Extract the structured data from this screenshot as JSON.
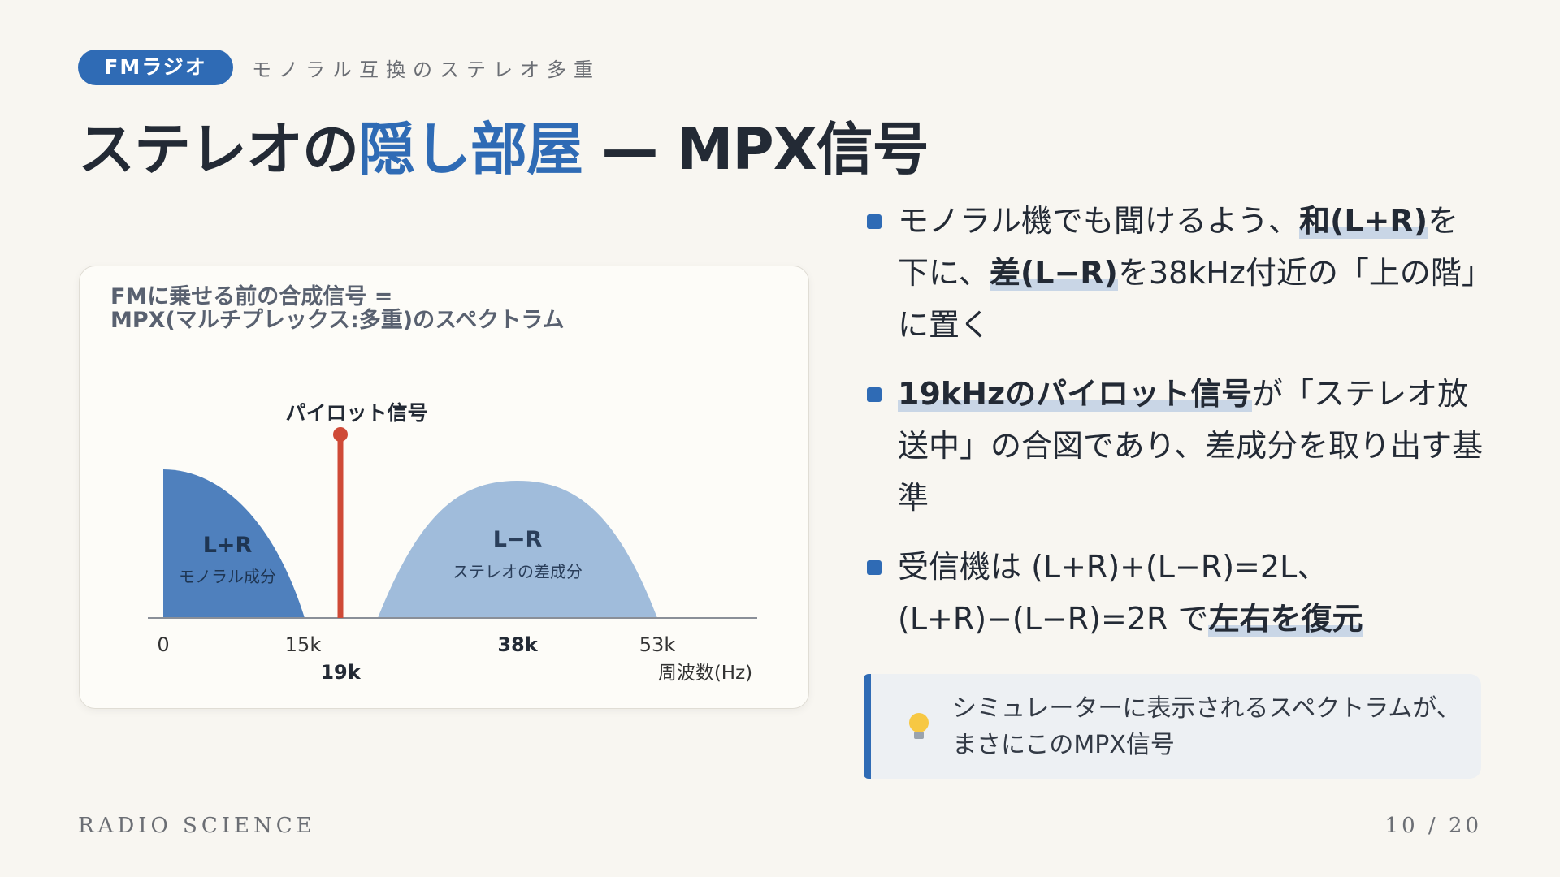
{
  "header": {
    "tag": "FMラジオ",
    "subtitle": "モノラル互換のステレオ多重",
    "title": {
      "before": "ステレオの",
      "highlight": "隠し部屋",
      "after": " — MPX信号"
    }
  },
  "diagram": {
    "title_lines": [
      "FMに乗せる前の合成信号 =",
      "MPX(マルチプレックス:多重)のスペクトラム"
    ],
    "pilot_label": "パイロット信号",
    "bands": [
      {
        "label": "L+R",
        "sublabel": "モノラル成分"
      },
      {
        "label": "L−R",
        "sublabel": "ステレオの差成分"
      }
    ],
    "axis": {
      "ticks": [
        "0",
        "15k",
        "19k",
        "38k",
        "53k"
      ],
      "unit": "周波数(Hz)"
    }
  },
  "bullets": [
    [
      "モノラル機でも聞けるよう、",
      "和(L+R)",
      "を下に、",
      "差(L−R)",
      "を38kHz付近の「上の階」に置く"
    ],
    [
      "19kHzのパイロット信号",
      "が「ステレオ放送中」の合図であり、差成分を取り出す基準"
    ],
    [
      "受信機は (L+R)+(L−R)=2L、",
      "(L+R)−(L−R)=2R で",
      "左右を復元"
    ]
  ],
  "note": {
    "lines": [
      "シミュレーターに表示されるスペクトラムが、",
      "まさにこのMPX信号"
    ]
  },
  "footer": {
    "brand": "RADIO SCIENCE",
    "page": "10 / 20"
  }
}
